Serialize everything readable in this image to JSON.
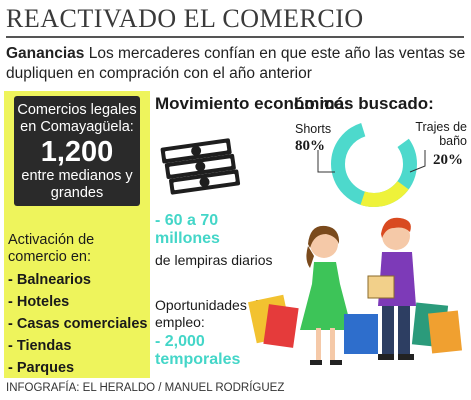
{
  "header": {
    "title": "REACTIVADO EL COMERCIO",
    "intro_keyword": "Ganancias",
    "intro_text": "Los mercaderes confían en que este año las ventas se dupliquen en compración con el año anterior"
  },
  "left_panel": {
    "box_line1": "Comercios legales en Comayagüela:",
    "box_number": "1,200",
    "box_line3": "entre medianos y grandes",
    "activation_label": "Activación de comercio en:",
    "items": [
      "- Balnearios",
      "- Hoteles",
      "- Casas comerciales",
      "- Tiendas",
      "- Parques"
    ]
  },
  "movement": {
    "title": "Movimiento económico:",
    "range": "- 60 a 70 millones",
    "unit": "de lempiras diarios",
    "jobs_label": "Oportunidades de empleo:",
    "jobs_value": "- 2,000 temporales",
    "icon": "money-stack-icon"
  },
  "most_wanted": {
    "title": "Lo más buscado:",
    "shorts_label": "Shorts",
    "shorts_pct": "80%",
    "shorts_value": 80,
    "trajes_label": "Trajes de baño",
    "trajes_pct": "20%",
    "trajes_value": 20,
    "colors": {
      "shorts": "#4dd9cc",
      "trajes": "#eef23a"
    }
  },
  "footer": {
    "credit": "INFOGRAFÍA: EL HERALDO / MANUEL RODRÍGUEZ"
  },
  "colors": {
    "panel": "#eef45c",
    "accent": "#44d6c8",
    "dark": "#2a2a2a"
  }
}
